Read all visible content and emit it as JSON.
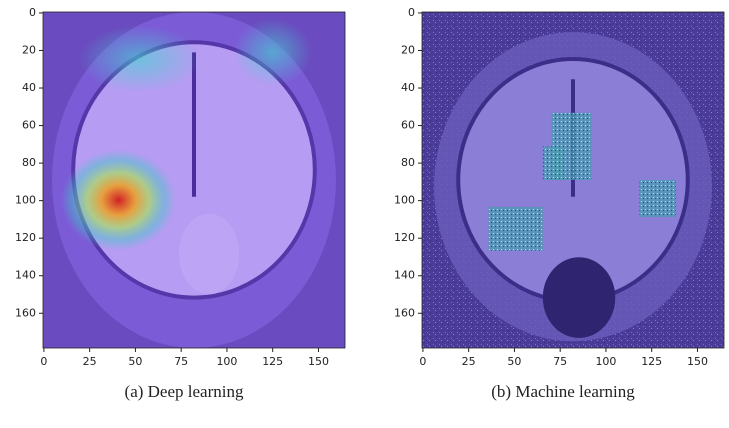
{
  "chart_data": [
    {
      "type": "image",
      "caption": "(a) Deep learning",
      "xlim": [
        -0.5,
        164.5
      ],
      "ylim": [
        178.5,
        -0.5
      ],
      "xticks": [
        0,
        25,
        50,
        75,
        100,
        125,
        150
      ],
      "yticks": [
        0,
        20,
        40,
        60,
        80,
        100,
        120,
        140,
        160
      ]
    },
    {
      "type": "image",
      "caption": "(b) Machine learning",
      "xlim": [
        -0.5,
        164.5
      ],
      "ylim": [
        178.5,
        -0.5
      ],
      "xticks": [
        0,
        25,
        50,
        75,
        100,
        125,
        150
      ],
      "yticks": [
        0,
        20,
        40,
        60,
        80,
        100,
        120,
        140,
        160
      ]
    }
  ]
}
